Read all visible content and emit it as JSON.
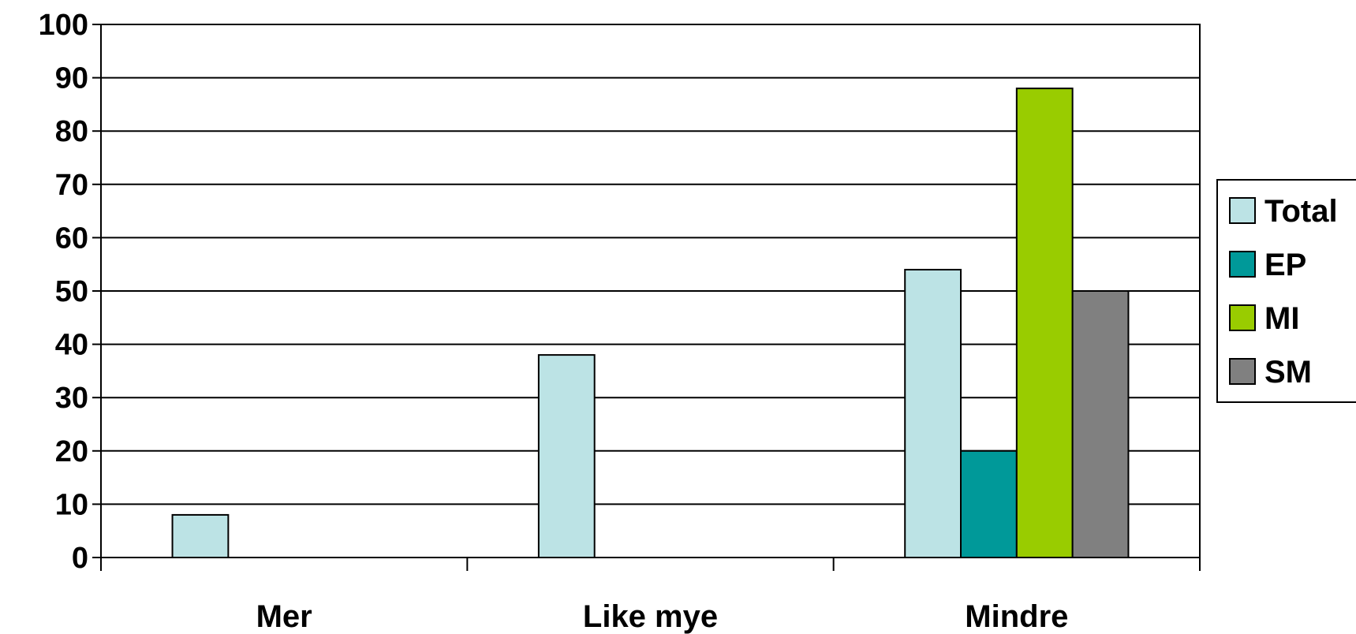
{
  "chart_data": {
    "type": "bar",
    "categories": [
      "Mer",
      "Like mye",
      "Mindre"
    ],
    "series": [
      {
        "name": "Total",
        "color": "#bce3e5",
        "values": [
          8,
          38,
          54
        ]
      },
      {
        "name": "EP",
        "color": "#009999",
        "values": [
          null,
          null,
          20
        ]
      },
      {
        "name": "MI",
        "color": "#99cc00",
        "values": [
          null,
          null,
          88
        ]
      },
      {
        "name": "SM",
        "color": "#808080",
        "values": [
          null,
          null,
          50
        ]
      }
    ],
    "title": "",
    "xlabel": "",
    "ylabel": "",
    "ylim": [
      0,
      100
    ],
    "yticks": [
      0,
      10,
      20,
      30,
      40,
      50,
      60,
      70,
      80,
      90,
      100
    ],
    "grid": true,
    "legend": "right"
  }
}
